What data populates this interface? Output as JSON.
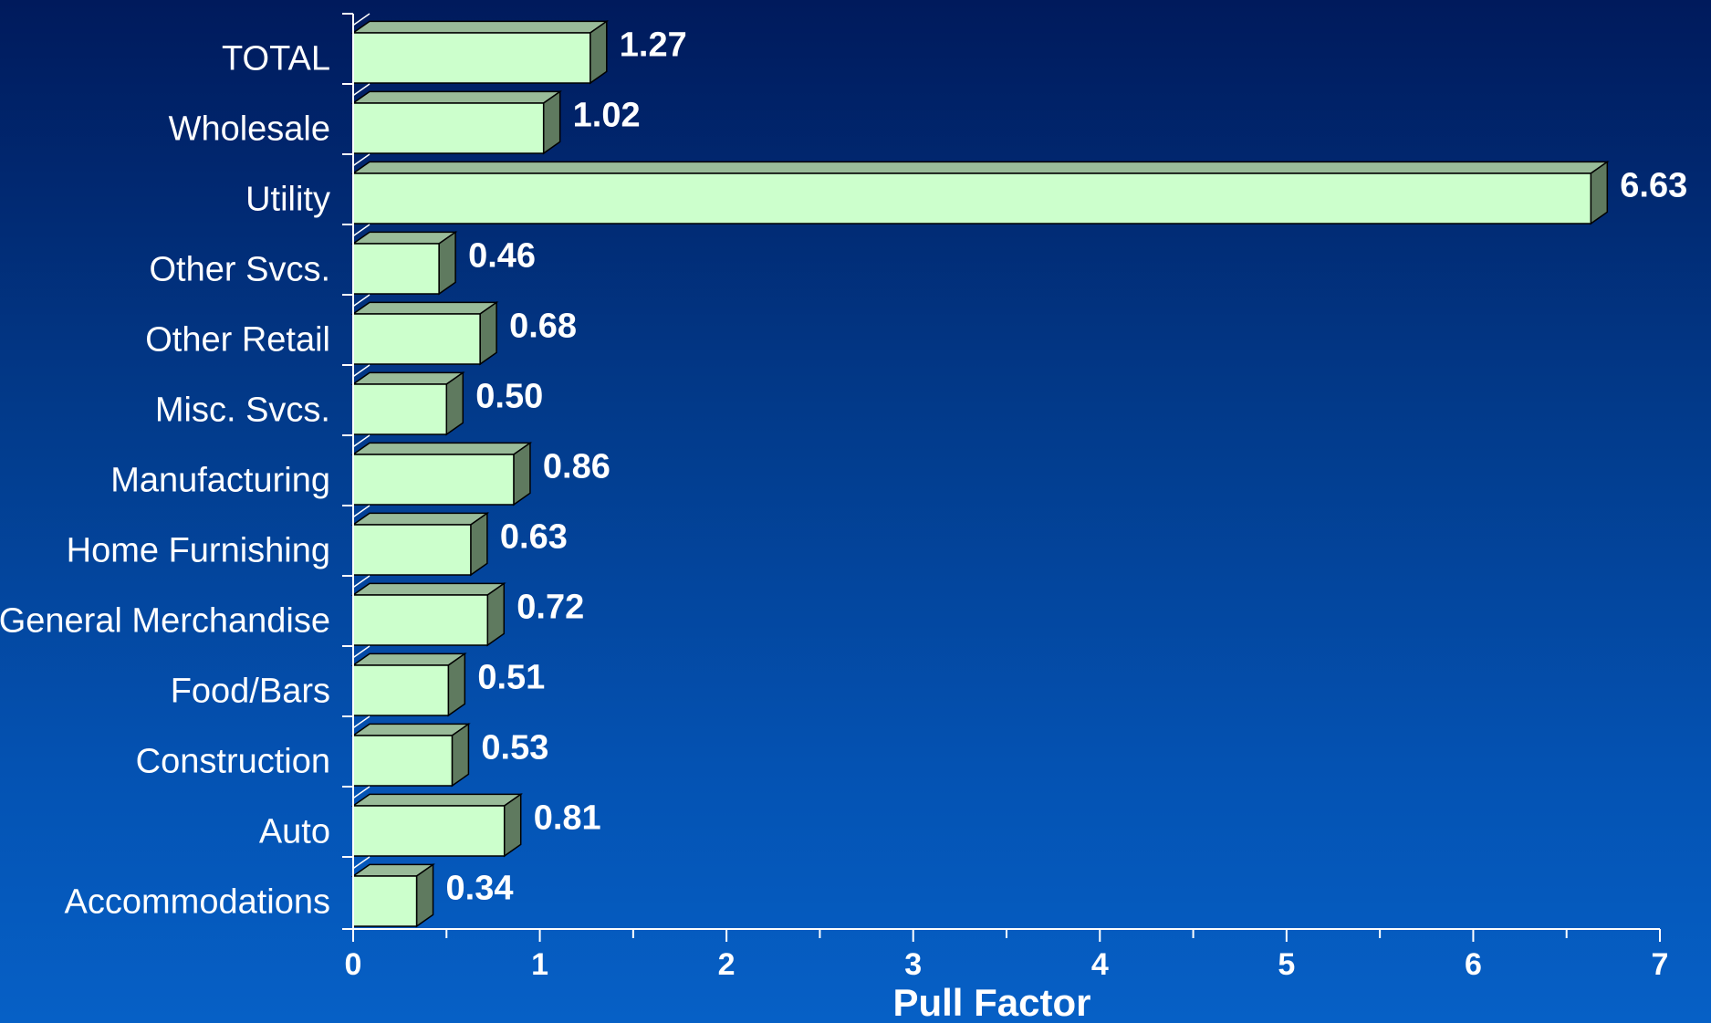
{
  "chart_data": {
    "type": "bar",
    "orientation": "horizontal",
    "categories": [
      "TOTAL",
      "Wholesale",
      "Utility",
      "Other Svcs.",
      "Other Retail",
      "Misc. Svcs.",
      "Manufacturing",
      "Home Furnishing",
      "General Merchandise",
      "Food/Bars",
      "Construction",
      "Auto",
      "Accommodations"
    ],
    "values": [
      1.27,
      1.02,
      6.63,
      0.46,
      0.68,
      0.5,
      0.86,
      0.63,
      0.72,
      0.51,
      0.53,
      0.81,
      0.34
    ],
    "value_labels": [
      "1.27",
      "1.02",
      "6.63",
      "0.46",
      "0.68",
      "0.50",
      "0.86",
      "0.63",
      "0.72",
      "0.51",
      "0.53",
      "0.81",
      "0.34"
    ],
    "xlabel": "Pull Factor",
    "ylabel": "",
    "xlim": [
      0,
      7
    ],
    "x_ticks": [
      "0",
      "1",
      "2",
      "3",
      "4",
      "5",
      "6",
      "7"
    ],
    "grid": false,
    "legend": "none",
    "colors": {
      "bar_face": "#ccffcc",
      "bar_top": "#99bb99",
      "bar_side": "#5f7a5f",
      "axis": "#ffffff",
      "text": "#ffffff"
    }
  }
}
